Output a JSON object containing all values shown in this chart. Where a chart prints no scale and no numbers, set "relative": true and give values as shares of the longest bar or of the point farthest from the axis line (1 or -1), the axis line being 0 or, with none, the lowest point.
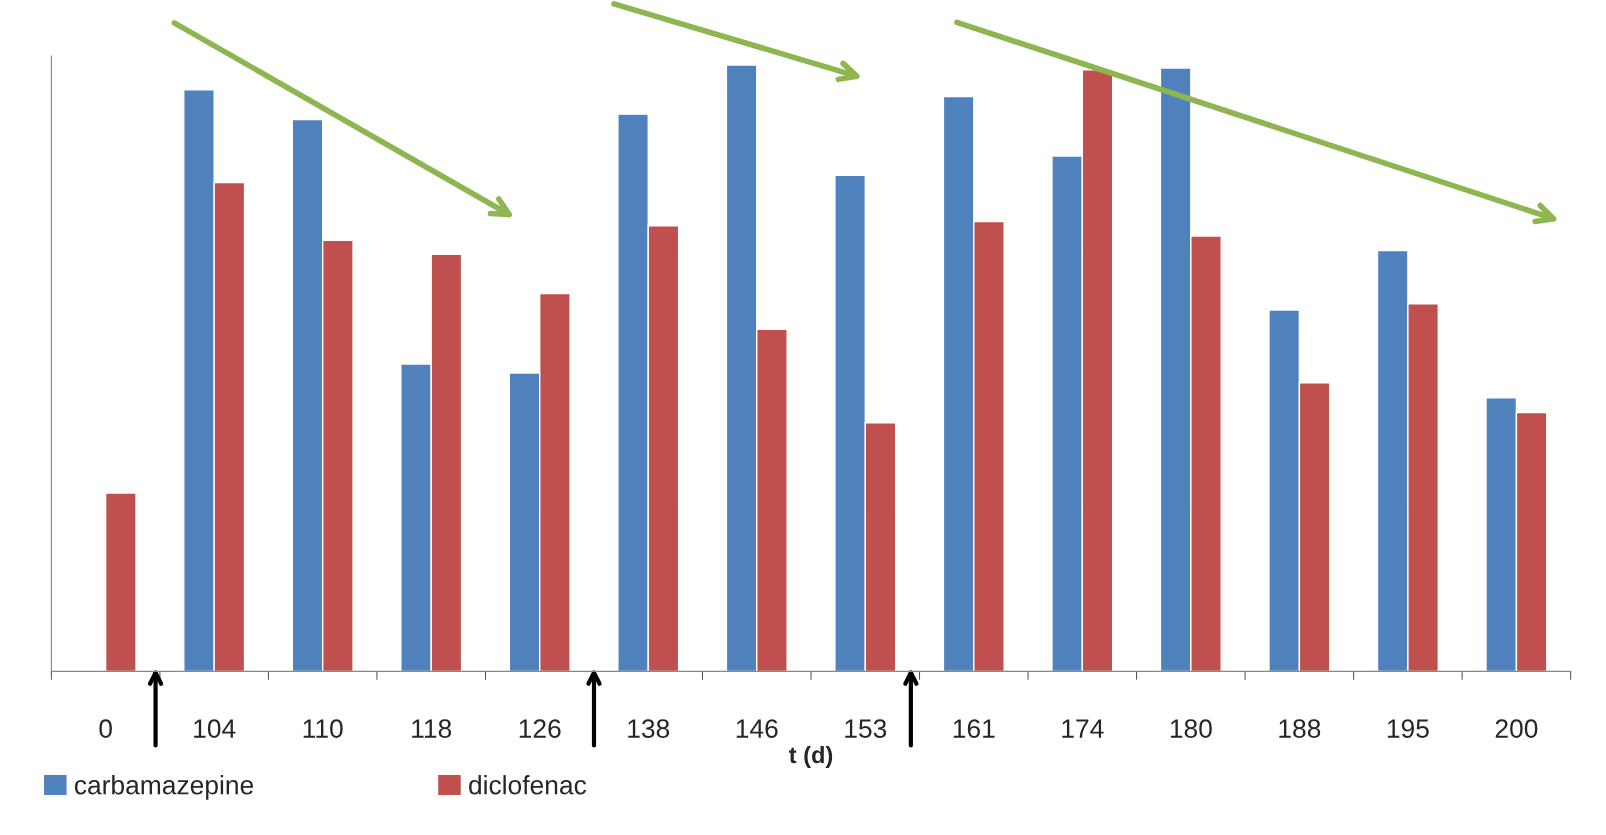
{
  "chart_data": {
    "type": "bar",
    "xlabel": "t (d)",
    "relative": true,
    "categories": [
      "0",
      "104",
      "110",
      "118",
      "126",
      "138",
      "146",
      "153",
      "161",
      "174",
      "180",
      "188",
      "195",
      "200"
    ],
    "series": [
      {
        "name": "carbamazepine",
        "color": "#4f81bd",
        "values": [
          null,
          0.959,
          0.91,
          0.507,
          0.492,
          0.919,
          1,
          0.818,
          0.948,
          0.85,
          0.995,
          0.596,
          0.694,
          0.451
        ]
      },
      {
        "name": "diclofenac",
        "color": "#c0504d",
        "values": [
          0.294,
          0.806,
          0.711,
          0.688,
          0.623,
          0.735,
          0.564,
          0.41,
          0.742,
          0.992,
          0.718,
          0.476,
          0.606,
          0.427
        ]
      }
    ],
    "legend": "bottom left",
    "grid": false
  }
}
